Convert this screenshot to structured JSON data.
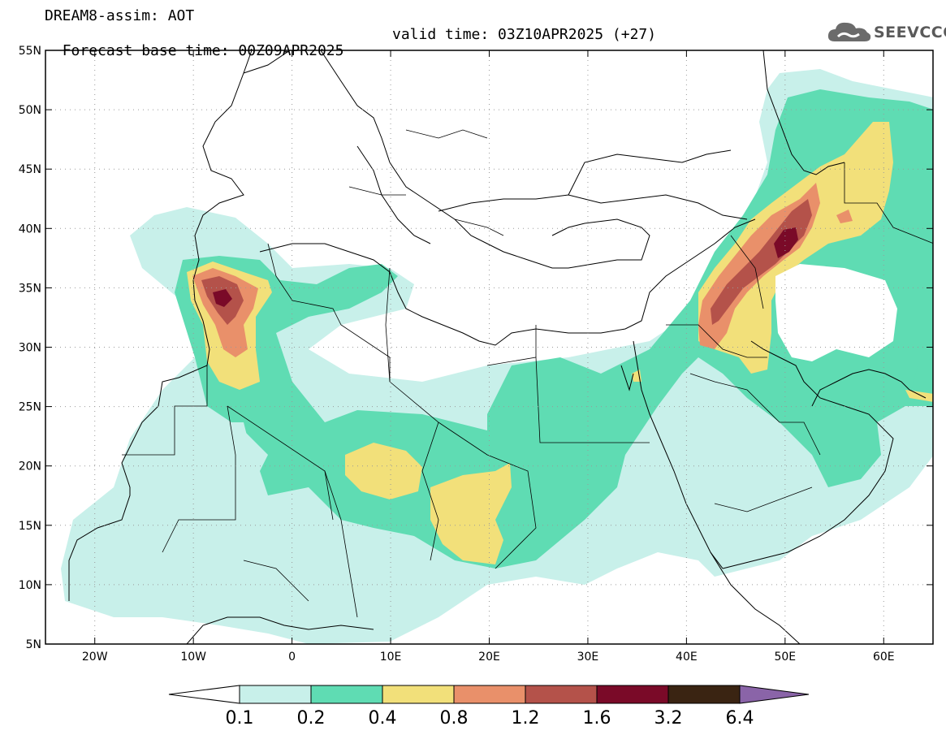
{
  "title": {
    "line1": "DREAM8-assim: AOT",
    "base": "Forecast base time: 00Z09APR2025",
    "valid": "valid time: 03Z10APR2025 (+27)"
  },
  "logo": {
    "text": "SEEVCCC",
    "icon": "cloud-icon"
  },
  "map": {
    "lon_range": [
      -25,
      65
    ],
    "lat_range": [
      5,
      55
    ],
    "lat_ticks": [
      {
        "v": 55,
        "label": "55N"
      },
      {
        "v": 50,
        "label": "50N"
      },
      {
        "v": 45,
        "label": "45N"
      },
      {
        "v": 40,
        "label": "40N"
      },
      {
        "v": 35,
        "label": "35N"
      },
      {
        "v": 30,
        "label": "30N"
      },
      {
        "v": 25,
        "label": "25N"
      },
      {
        "v": 20,
        "label": "20N"
      },
      {
        "v": 15,
        "label": "15N"
      },
      {
        "v": 10,
        "label": "10N"
      },
      {
        "v": 5,
        "label": "5N"
      }
    ],
    "lon_ticks": [
      {
        "v": -20,
        "label": "20W"
      },
      {
        "v": -10,
        "label": "10W"
      },
      {
        "v": 0,
        "label": "0"
      },
      {
        "v": 10,
        "label": "10E"
      },
      {
        "v": 20,
        "label": "20E"
      },
      {
        "v": 30,
        "label": "30E"
      },
      {
        "v": 40,
        "label": "40E"
      },
      {
        "v": 50,
        "label": "50E"
      },
      {
        "v": 60,
        "label": "60E"
      }
    ]
  },
  "colorbar": {
    "levels": [
      "0.1",
      "0.2",
      "0.4",
      "0.8",
      "1.2",
      "1.6",
      "3.2",
      "6.4"
    ],
    "colors": [
      "#c8f0ea",
      "#5fdcb3",
      "#f2e07a",
      "#e9906a",
      "#b4524a",
      "#7a0a28",
      "#3a2412"
    ],
    "under_color": "#ffffff",
    "over_color": "#8a64a8"
  },
  "colors": {
    "l1": "#c8f0ea",
    "l2": "#5fdcb3",
    "l3": "#f2e07a",
    "l4": "#e9906a",
    "l5": "#b4524a",
    "l6": "#7a0a28"
  }
}
